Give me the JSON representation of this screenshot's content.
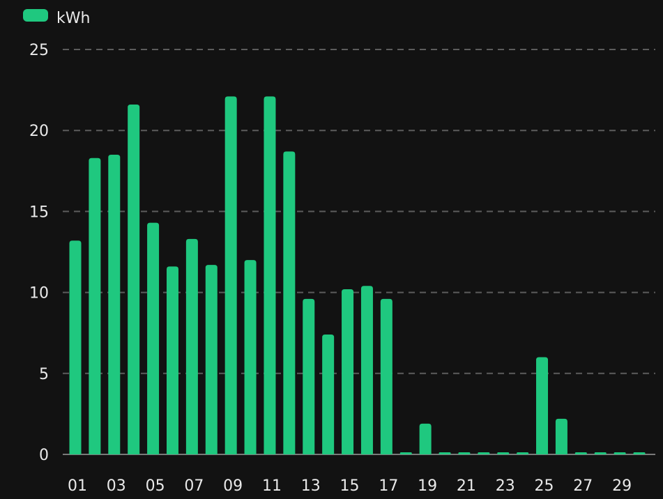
{
  "chart_data": {
    "type": "bar",
    "legend": {
      "label": "kWh",
      "position": "top-left"
    },
    "series": [
      {
        "name": "kWh",
        "color": "#1fc87f",
        "values": [
          13.2,
          18.3,
          18.5,
          21.6,
          14.3,
          11.6,
          13.3,
          11.7,
          22.1,
          12.0,
          22.1,
          18.7,
          9.6,
          7.4,
          10.2,
          10.4,
          9.6,
          0.1,
          1.9,
          0.1,
          0.1,
          0.05,
          0.05,
          0.1,
          6.0,
          2.2,
          0.05,
          0.05,
          0.05,
          0.05
        ]
      }
    ],
    "categories": [
      "01",
      "02",
      "03",
      "04",
      "05",
      "06",
      "07",
      "08",
      "09",
      "10",
      "11",
      "12",
      "13",
      "14",
      "15",
      "16",
      "17",
      "18",
      "19",
      "20",
      "21",
      "22",
      "23",
      "24",
      "25",
      "26",
      "27",
      "28",
      "29",
      "30"
    ],
    "x_tick_labels": [
      "01",
      "03",
      "05",
      "07",
      "09",
      "11",
      "13",
      "15",
      "17",
      "19",
      "21",
      "23",
      "25",
      "27",
      "29"
    ],
    "y_ticks": [
      0,
      5,
      10,
      15,
      20,
      25
    ],
    "ylim": [
      0,
      25
    ],
    "grid": true,
    "title": "",
    "xlabel": "",
    "ylabel": ""
  }
}
